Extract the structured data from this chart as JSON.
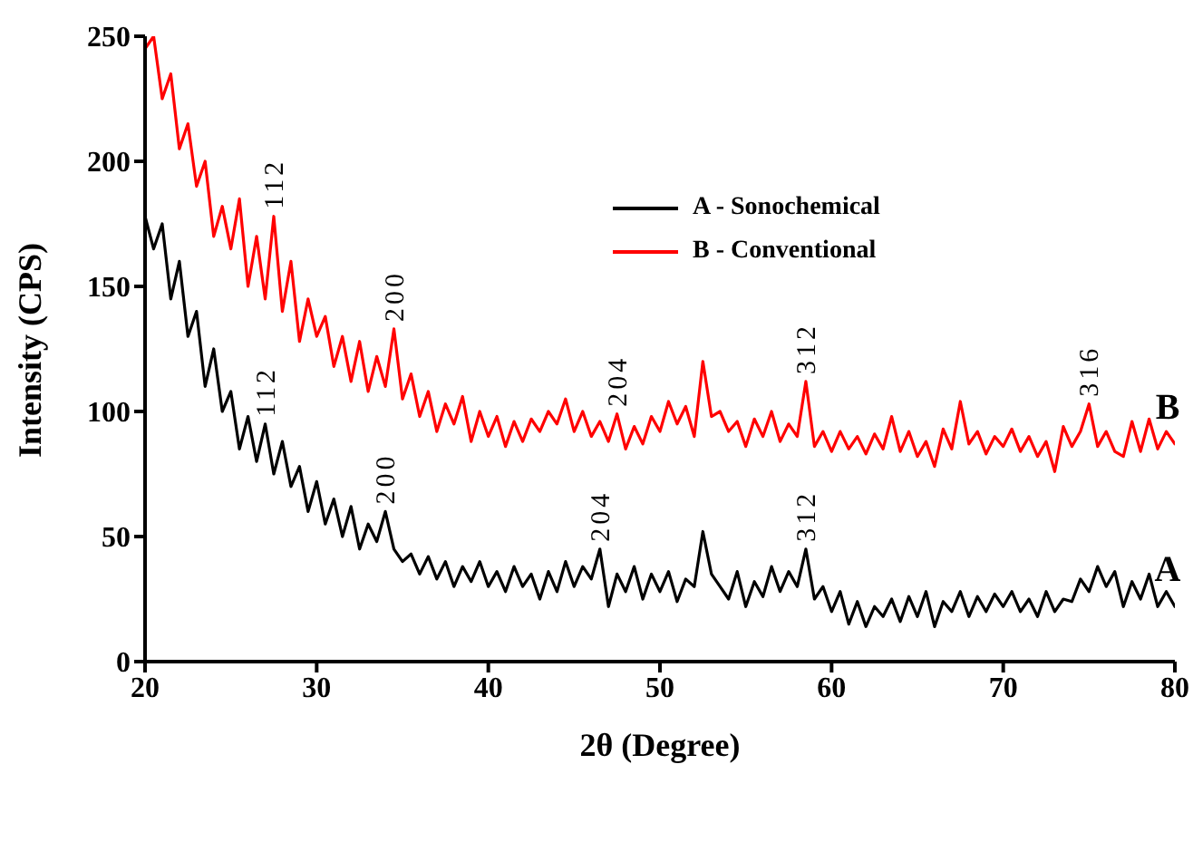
{
  "chart_data": {
    "type": "line",
    "xlabel": "2θ (Degree)",
    "ylabel": "Intensity (CPS)",
    "x": [
      20,
      20.5,
      21,
      21.5,
      22,
      22.5,
      23,
      23.5,
      24,
      24.5,
      25,
      25.5,
      26,
      26.5,
      27,
      27.5,
      28,
      28.5,
      29,
      29.5,
      30,
      30.5,
      31,
      31.5,
      32,
      32.5,
      33,
      33.5,
      34,
      34.5,
      35,
      35.5,
      36,
      36.5,
      37,
      37.5,
      38,
      38.5,
      39,
      39.5,
      40,
      40.5,
      41,
      41.5,
      42,
      42.5,
      43,
      43.5,
      44,
      44.5,
      45,
      45.5,
      46,
      46.5,
      47,
      47.5,
      48,
      48.5,
      49,
      49.5,
      50,
      50.5,
      51,
      51.5,
      52,
      52.5,
      53,
      53.5,
      54,
      54.5,
      55,
      55.5,
      56,
      56.5,
      57,
      57.5,
      58,
      58.5,
      59,
      59.5,
      60,
      60.5,
      61,
      61.5,
      62,
      62.5,
      63,
      63.5,
      64,
      64.5,
      65,
      65.5,
      66,
      66.5,
      67,
      67.5,
      68,
      68.5,
      69,
      69.5,
      70,
      70.5,
      71,
      71.5,
      72,
      72.5,
      73,
      73.5,
      74,
      74.5,
      75,
      75.5,
      76,
      76.5,
      77,
      77.5,
      78,
      78.5,
      79,
      79.5,
      80
    ],
    "series": [
      {
        "name": "A - Sonochemical",
        "color": "#000000",
        "values": [
          178,
          165,
          175,
          145,
          160,
          130,
          140,
          110,
          125,
          100,
          108,
          85,
          98,
          80,
          95,
          75,
          88,
          70,
          78,
          60,
          72,
          55,
          65,
          50,
          62,
          45,
          55,
          48,
          60,
          45,
          40,
          43,
          35,
          42,
          33,
          40,
          30,
          38,
          32,
          40,
          30,
          36,
          28,
          38,
          30,
          35,
          25,
          36,
          28,
          40,
          30,
          38,
          33,
          45,
          22,
          35,
          28,
          38,
          25,
          35,
          28,
          36,
          24,
          33,
          30,
          52,
          35,
          30,
          25,
          36,
          22,
          32,
          26,
          38,
          28,
          36,
          30,
          45,
          25,
          30,
          20,
          28,
          15,
          24,
          14,
          22,
          18,
          25,
          16,
          26,
          18,
          28,
          14,
          24,
          20,
          28,
          18,
          26,
          20,
          27,
          22,
          28,
          20,
          25,
          18,
          28,
          20,
          25,
          24,
          33,
          28,
          38,
          30,
          36,
          22,
          32,
          25,
          35,
          22,
          28,
          22
        ]
      },
      {
        "name": "B - Conventional",
        "color": "#ff0000",
        "values": [
          245,
          250,
          225,
          235,
          205,
          215,
          190,
          200,
          170,
          182,
          165,
          185,
          150,
          170,
          145,
          178,
          140,
          160,
          128,
          145,
          130,
          138,
          118,
          130,
          112,
          128,
          108,
          122,
          110,
          133,
          105,
          115,
          98,
          108,
          92,
          103,
          95,
          106,
          88,
          100,
          90,
          98,
          86,
          96,
          88,
          97,
          92,
          100,
          95,
          105,
          92,
          100,
          90,
          96,
          88,
          99,
          85,
          94,
          87,
          98,
          92,
          104,
          95,
          102,
          90,
          120,
          98,
          100,
          92,
          96,
          86,
          97,
          90,
          100,
          88,
          95,
          90,
          112,
          86,
          92,
          84,
          92,
          85,
          90,
          83,
          91,
          85,
          98,
          84,
          92,
          82,
          88,
          78,
          93,
          85,
          104,
          87,
          92,
          83,
          90,
          86,
          93,
          84,
          90,
          82,
          88,
          76,
          94,
          86,
          92,
          103,
          86,
          92,
          84,
          82,
          96,
          84,
          97,
          85,
          92,
          87
        ]
      }
    ],
    "xlim": [
      20,
      80
    ],
    "xticks": [
      20,
      30,
      40,
      50,
      60,
      70,
      80
    ],
    "ylim": [
      0,
      250
    ],
    "yticks": [
      0,
      50,
      100,
      150,
      200,
      250
    ],
    "legend": "top",
    "grid": false,
    "marker": "none",
    "line_style": "solid",
    "annotations": [
      {
        "text": "112",
        "x": 27.5,
        "y": 178
      },
      {
        "text": "200",
        "x": 34.5,
        "y": 133
      },
      {
        "text": "204",
        "x": 47.5,
        "y": 99
      },
      {
        "text": "312",
        "x": 58.5,
        "y": 112
      },
      {
        "text": "316",
        "x": 75,
        "y": 103
      },
      {
        "text": "112",
        "x": 27,
        "y": 95
      },
      {
        "text": "200",
        "x": 34,
        "y": 60
      },
      {
        "text": "204",
        "x": 46.5,
        "y": 45
      },
      {
        "text": "312",
        "x": 58.5,
        "y": 45
      },
      {
        "text": "A",
        "x": 80,
        "y": 22
      },
      {
        "text": "B",
        "x": 80,
        "y": 87
      }
    ]
  }
}
